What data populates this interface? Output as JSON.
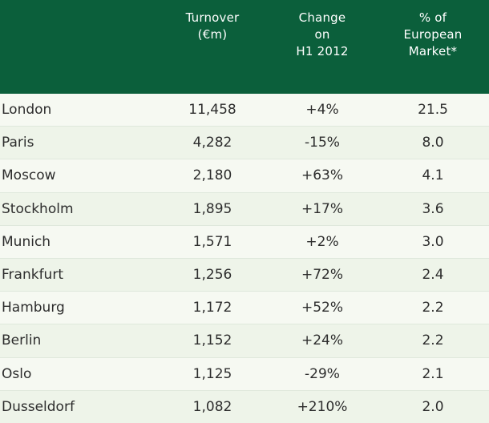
{
  "header": {
    "turnover": "Turnover\n(€m)",
    "change": "Change\non\nH1 2012",
    "share": "% of\nEuropean\nMarket*"
  },
  "rows": [
    {
      "city": "London",
      "turnover": "11,458",
      "change": "+4%",
      "share": "21.5"
    },
    {
      "city": "Paris",
      "turnover": "4,282",
      "change": "-15%",
      "share": "8.0"
    },
    {
      "city": "Moscow",
      "turnover": "2,180",
      "change": "+63%",
      "share": "4.1"
    },
    {
      "city": "Stockholm",
      "turnover": "1,895",
      "change": "+17%",
      "share": "3.6"
    },
    {
      "city": "Munich",
      "turnover": "1,571",
      "change": "+2%",
      "share": "3.0"
    },
    {
      "city": "Frankfurt",
      "turnover": "1,256",
      "change": "+72%",
      "share": "2.4"
    },
    {
      "city": "Hamburg",
      "turnover": "1,172",
      "change": "+52%",
      "share": "2.2"
    },
    {
      "city": "Berlin",
      "turnover": "1,152",
      "change": "+24%",
      "share": "2.2"
    },
    {
      "city": "Oslo",
      "turnover": "1,125",
      "change": "-29%",
      "share": "2.1"
    },
    {
      "city": "Dusseldorf",
      "turnover": "1,082",
      "change": "+210%",
      "share": "2.0"
    }
  ],
  "colors": {
    "header_bg": "#0b5f3b",
    "row_bg": "#f6f9f2",
    "row_alt_bg": "#eef4e9"
  }
}
